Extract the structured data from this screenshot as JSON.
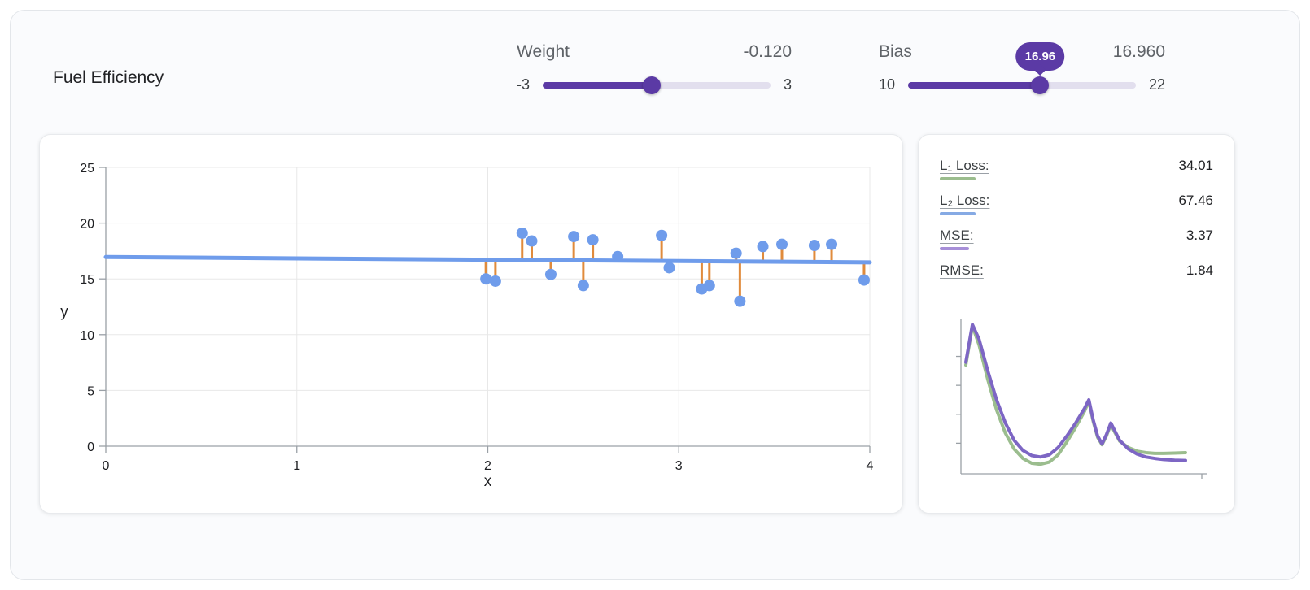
{
  "title": "Fuel Efficiency",
  "controls": {
    "weight": {
      "label": "Weight",
      "value_display": "-0.120",
      "value": -0.12,
      "min": -3,
      "max": 3,
      "min_label": "-3",
      "max_label": "3"
    },
    "bias": {
      "label": "Bias",
      "value_display": "16.960",
      "value": 16.96,
      "min": 10,
      "max": 22,
      "min_label": "10",
      "max_label": "22",
      "tooltip": "16.96"
    }
  },
  "metrics": [
    {
      "name": "l1-loss",
      "label": "L₁ Loss:",
      "value": "34.01",
      "swatch_color": "#9bbd8e",
      "swatch_width": 44
    },
    {
      "name": "l2-loss",
      "label": "L₂ Loss:",
      "value": "67.46",
      "swatch_color": "#86aae4",
      "swatch_width": 44
    },
    {
      "name": "mse",
      "label": "MSE:",
      "value": "3.37",
      "swatch_color": "#a78fd8",
      "swatch_width": 36
    },
    {
      "name": "rmse",
      "label": "RMSE:",
      "value": "1.84",
      "swatch_color": "",
      "swatch_width": 0
    }
  ],
  "chart_data": [
    {
      "type": "scatter",
      "title": "",
      "xlabel": "x",
      "ylabel": "y",
      "xlim": [
        0,
        4
      ],
      "ylim": [
        0,
        25
      ],
      "xticks": [
        0,
        1,
        2,
        3,
        4
      ],
      "yticks": [
        0,
        5,
        10,
        15,
        20,
        25
      ],
      "grid": true,
      "points": [
        [
          1.99,
          15.0
        ],
        [
          2.04,
          14.8
        ],
        [
          2.18,
          19.1
        ],
        [
          2.23,
          18.4
        ],
        [
          2.33,
          15.4
        ],
        [
          2.45,
          18.8
        ],
        [
          2.5,
          14.4
        ],
        [
          2.55,
          18.5
        ],
        [
          2.68,
          17.0
        ],
        [
          2.91,
          18.9
        ],
        [
          2.95,
          16.0
        ],
        [
          3.12,
          14.1
        ],
        [
          3.16,
          14.4
        ],
        [
          3.3,
          17.3
        ],
        [
          3.32,
          13.0
        ],
        [
          3.44,
          17.9
        ],
        [
          3.54,
          18.1
        ],
        [
          3.71,
          18.0
        ],
        [
          3.8,
          18.1
        ],
        [
          3.97,
          14.9
        ]
      ],
      "model_line": {
        "weight": -0.12,
        "bias": 16.96
      },
      "colors": {
        "point": "#6f9ceb",
        "line": "#6f9ceb",
        "residual": "#e08b3c",
        "grid": "#e8e8e8",
        "axis": "#9aa0a6",
        "text": "#202124"
      }
    },
    {
      "type": "line",
      "title": "",
      "xlabel": "",
      "ylabel": "",
      "xlim": [
        0,
        100
      ],
      "ylim": [
        0,
        10.5
      ],
      "legend": "none",
      "x": [
        0,
        3,
        6,
        10,
        14,
        18,
        22,
        26,
        30,
        34,
        38,
        42,
        46,
        50,
        54,
        56,
        58,
        60,
        62,
        64,
        66,
        68,
        70,
        74,
        78,
        82,
        86,
        90,
        95,
        100
      ],
      "series": [
        {
          "name": "L1 Loss",
          "color": "#9bbd8e",
          "values": [
            7.4,
            10.1,
            8.8,
            6.4,
            4.3,
            2.7,
            1.6,
            0.95,
            0.62,
            0.55,
            0.7,
            1.2,
            2.1,
            3.1,
            4.2,
            4.9,
            3.5,
            2.4,
            1.9,
            2.5,
            3.3,
            2.7,
            2.15,
            1.7,
            1.45,
            1.35,
            1.3,
            1.3,
            1.32,
            1.35
          ]
        },
        {
          "name": "MSE",
          "color": "#7d66c4",
          "values": [
            7.6,
            10.2,
            9.2,
            7.0,
            5.0,
            3.4,
            2.2,
            1.5,
            1.15,
            1.05,
            1.2,
            1.7,
            2.5,
            3.4,
            4.4,
            5.0,
            3.6,
            2.5,
            1.95,
            2.6,
            3.4,
            2.8,
            2.2,
            1.6,
            1.25,
            1.05,
            0.95,
            0.88,
            0.83,
            0.81
          ]
        }
      ]
    }
  ]
}
